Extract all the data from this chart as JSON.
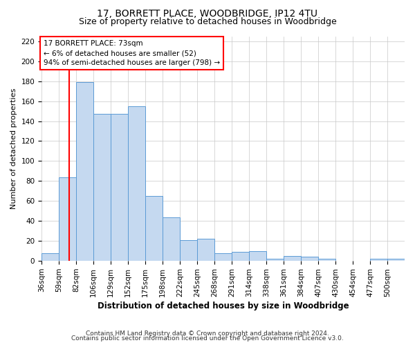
{
  "title": "17, BORRETT PLACE, WOODBRIDGE, IP12 4TU",
  "subtitle": "Size of property relative to detached houses in Woodbridge",
  "xlabel": "Distribution of detached houses by size in Woodbridge",
  "ylabel": "Number of detached properties",
  "bin_labels": [
    "36sqm",
    "59sqm",
    "82sqm",
    "106sqm",
    "129sqm",
    "152sqm",
    "175sqm",
    "198sqm",
    "222sqm",
    "245sqm",
    "268sqm",
    "291sqm",
    "314sqm",
    "338sqm",
    "361sqm",
    "384sqm",
    "407sqm",
    "430sqm",
    "454sqm",
    "477sqm",
    "500sqm"
  ],
  "bar_values": [
    8,
    84,
    179,
    147,
    147,
    155,
    65,
    44,
    21,
    22,
    8,
    9,
    10,
    2,
    5,
    4,
    2,
    0,
    0,
    2,
    2
  ],
  "bar_color": "#c5d9f0",
  "bar_edge_color": "#5b9bd5",
  "vline_color": "#ff0000",
  "annotation_line1": "17 BORRETT PLACE: 73sqm",
  "annotation_line2": "← 6% of detached houses are smaller (52)",
  "annotation_line3": "94% of semi-detached houses are larger (798) →",
  "annotation_box_color": "#ffffff",
  "annotation_box_edge": "#ff0000",
  "ylim": [
    0,
    225
  ],
  "yticks": [
    0,
    20,
    40,
    60,
    80,
    100,
    120,
    140,
    160,
    180,
    200,
    220
  ],
  "footnote1": "Contains HM Land Registry data © Crown copyright and database right 2024.",
  "footnote2": "Contains public sector information licensed under the Open Government Licence v3.0.",
  "background_color": "#ffffff",
  "grid_color": "#c8c8c8",
  "title_fontsize": 10,
  "subtitle_fontsize": 9,
  "xlabel_fontsize": 8.5,
  "ylabel_fontsize": 8,
  "tick_fontsize": 7.5,
  "annotation_fontsize": 7.5,
  "footnote_fontsize": 6.5
}
